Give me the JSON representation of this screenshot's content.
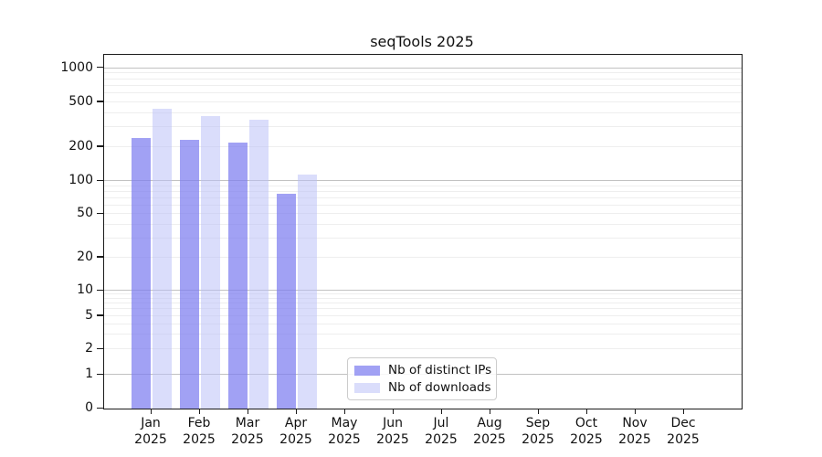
{
  "chart_data": {
    "type": "bar",
    "title": "seqTools 2025",
    "categories": [
      "Jan 2025",
      "Feb 2025",
      "Mar 2025",
      "Apr 2025",
      "May 2025",
      "Jun 2025",
      "Jul 2025",
      "Aug 2025",
      "Sep 2025",
      "Oct 2025",
      "Nov 2025",
      "Dec 2025"
    ],
    "months": [
      "Jan",
      "Feb",
      "Mar",
      "Apr",
      "May",
      "Jun",
      "Jul",
      "Aug",
      "Sep",
      "Oct",
      "Nov",
      "Dec"
    ],
    "year_label": "2025",
    "series": [
      {
        "name": "Nb of distinct IPs",
        "color": "rgba(125,125,240,0.72)",
        "solid_color": "#a1a1f4",
        "values": [
          240,
          230,
          220,
          76,
          null,
          null,
          null,
          null,
          null,
          null,
          null,
          null
        ]
      },
      {
        "name": "Nb of downloads",
        "color": "rgba(185,189,248,0.52)",
        "solid_color": "#dadbfa",
        "values": [
          435,
          375,
          350,
          115,
          null,
          null,
          null,
          null,
          null,
          null,
          null,
          null
        ]
      }
    ],
    "y_axis": {
      "scale": "symlog",
      "ticks": [
        0,
        1,
        2,
        5,
        10,
        20,
        50,
        100,
        200,
        500,
        1000
      ],
      "ylim": [
        0,
        1300
      ],
      "minor_grid_multiples": [
        2,
        3,
        4,
        5,
        6,
        7,
        8,
        9
      ],
      "major_grid_values": [
        1,
        10,
        100,
        1000
      ]
    },
    "grid": "horizontal, minor + major, behind translucent bars",
    "legend_position": "lower center-right inside axes"
  },
  "legend": {
    "items": [
      {
        "label": "Nb of distinct IPs"
      },
      {
        "label": "Nb of downloads"
      }
    ]
  },
  "colors": {
    "ips_bar_fill": "rgba(125,125,240,0.72)",
    "downloads_bar_fill": "rgba(185,189,248,0.52)",
    "major_grid": "#c2c2c2",
    "minor_grid": "#eeeeee",
    "axis_frame": "#1b1b1b"
  }
}
